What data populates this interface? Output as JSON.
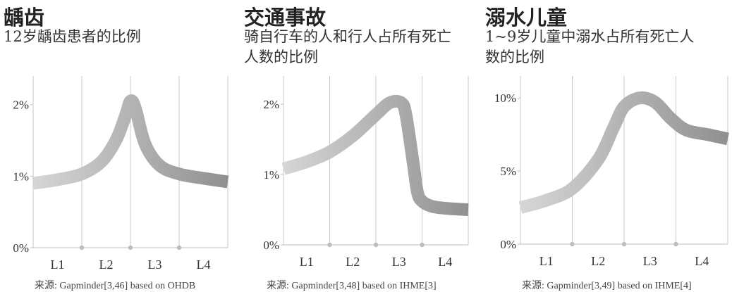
{
  "panels": [
    {
      "title": "龋齿",
      "subtitle": "12岁龋齿患者的比例",
      "source": "来源: Gapminder[3,46] based on OHDB"
    },
    {
      "title": "交通事故",
      "subtitle": "骑自行车的人和行人占所有死亡人数的比例",
      "source": "来源: Gapminder[3,48] based on IHME[3]"
    },
    {
      "title": "溺水儿童",
      "subtitle": "1~9岁儿童中溺水占所有死亡人数的比例",
      "source": "来源: Gapminder[3,49] based on IHME[4]"
    }
  ],
  "chart_data": [
    {
      "type": "line",
      "title": "龋齿",
      "subtitle": "12岁龋齿患者的比例",
      "categories": [
        "L1",
        "L2",
        "L3",
        "L4"
      ],
      "y_ticks": [
        "0%",
        "1%",
        "2%"
      ],
      "ylim": [
        0,
        2.4
      ],
      "x": [
        1.0,
        1.5,
        2.0,
        2.4,
        2.7,
        2.9,
        3.0,
        3.1,
        3.3,
        3.6,
        4.0,
        4.5,
        5.0
      ],
      "y": [
        0.9,
        0.95,
        1.03,
        1.2,
        1.5,
        1.85,
        2.05,
        1.95,
        1.45,
        1.15,
        1.03,
        0.97,
        0.92
      ],
      "grid": "vertical-lines",
      "line_gradient": [
        "#d6d6d6",
        "#909090"
      ]
    },
    {
      "type": "line",
      "title": "交通事故",
      "subtitle": "骑自行车的人和行人占所有死亡人数的比例",
      "categories": [
        "L1",
        "L2",
        "L3",
        "L4"
      ],
      "y_ticks": [
        "0%",
        "1%",
        "2%"
      ],
      "ylim": [
        0,
        2.4
      ],
      "x": [
        1.0,
        1.5,
        2.0,
        2.5,
        3.0,
        3.3,
        3.55,
        3.65,
        3.8,
        3.9,
        4.0,
        4.2,
        4.5,
        5.0
      ],
      "y": [
        1.08,
        1.18,
        1.32,
        1.55,
        1.85,
        2.02,
        2.02,
        1.85,
        1.2,
        0.75,
        0.62,
        0.55,
        0.52,
        0.5
      ],
      "grid": "vertical-lines",
      "line_gradient": [
        "#d6d6d6",
        "#909090"
      ]
    },
    {
      "type": "line",
      "title": "溺水儿童",
      "subtitle": "1~9岁儿童中溺水占所有死亡人数的比例",
      "categories": [
        "L1",
        "L2",
        "L3",
        "L4"
      ],
      "y_ticks": [
        "0%",
        "5%",
        "10%"
      ],
      "ylim": [
        0,
        11.5
      ],
      "x": [
        1.0,
        1.5,
        2.0,
        2.5,
        2.8,
        3.0,
        3.3,
        3.6,
        3.9,
        4.2,
        4.6,
        5.0
      ],
      "y": [
        2.5,
        3.0,
        3.8,
        5.8,
        8.0,
        9.4,
        10.0,
        9.7,
        8.6,
        7.8,
        7.5,
        7.2
      ],
      "grid": "vertical-lines",
      "line_gradient": [
        "#d6d6d6",
        "#909090"
      ]
    }
  ]
}
